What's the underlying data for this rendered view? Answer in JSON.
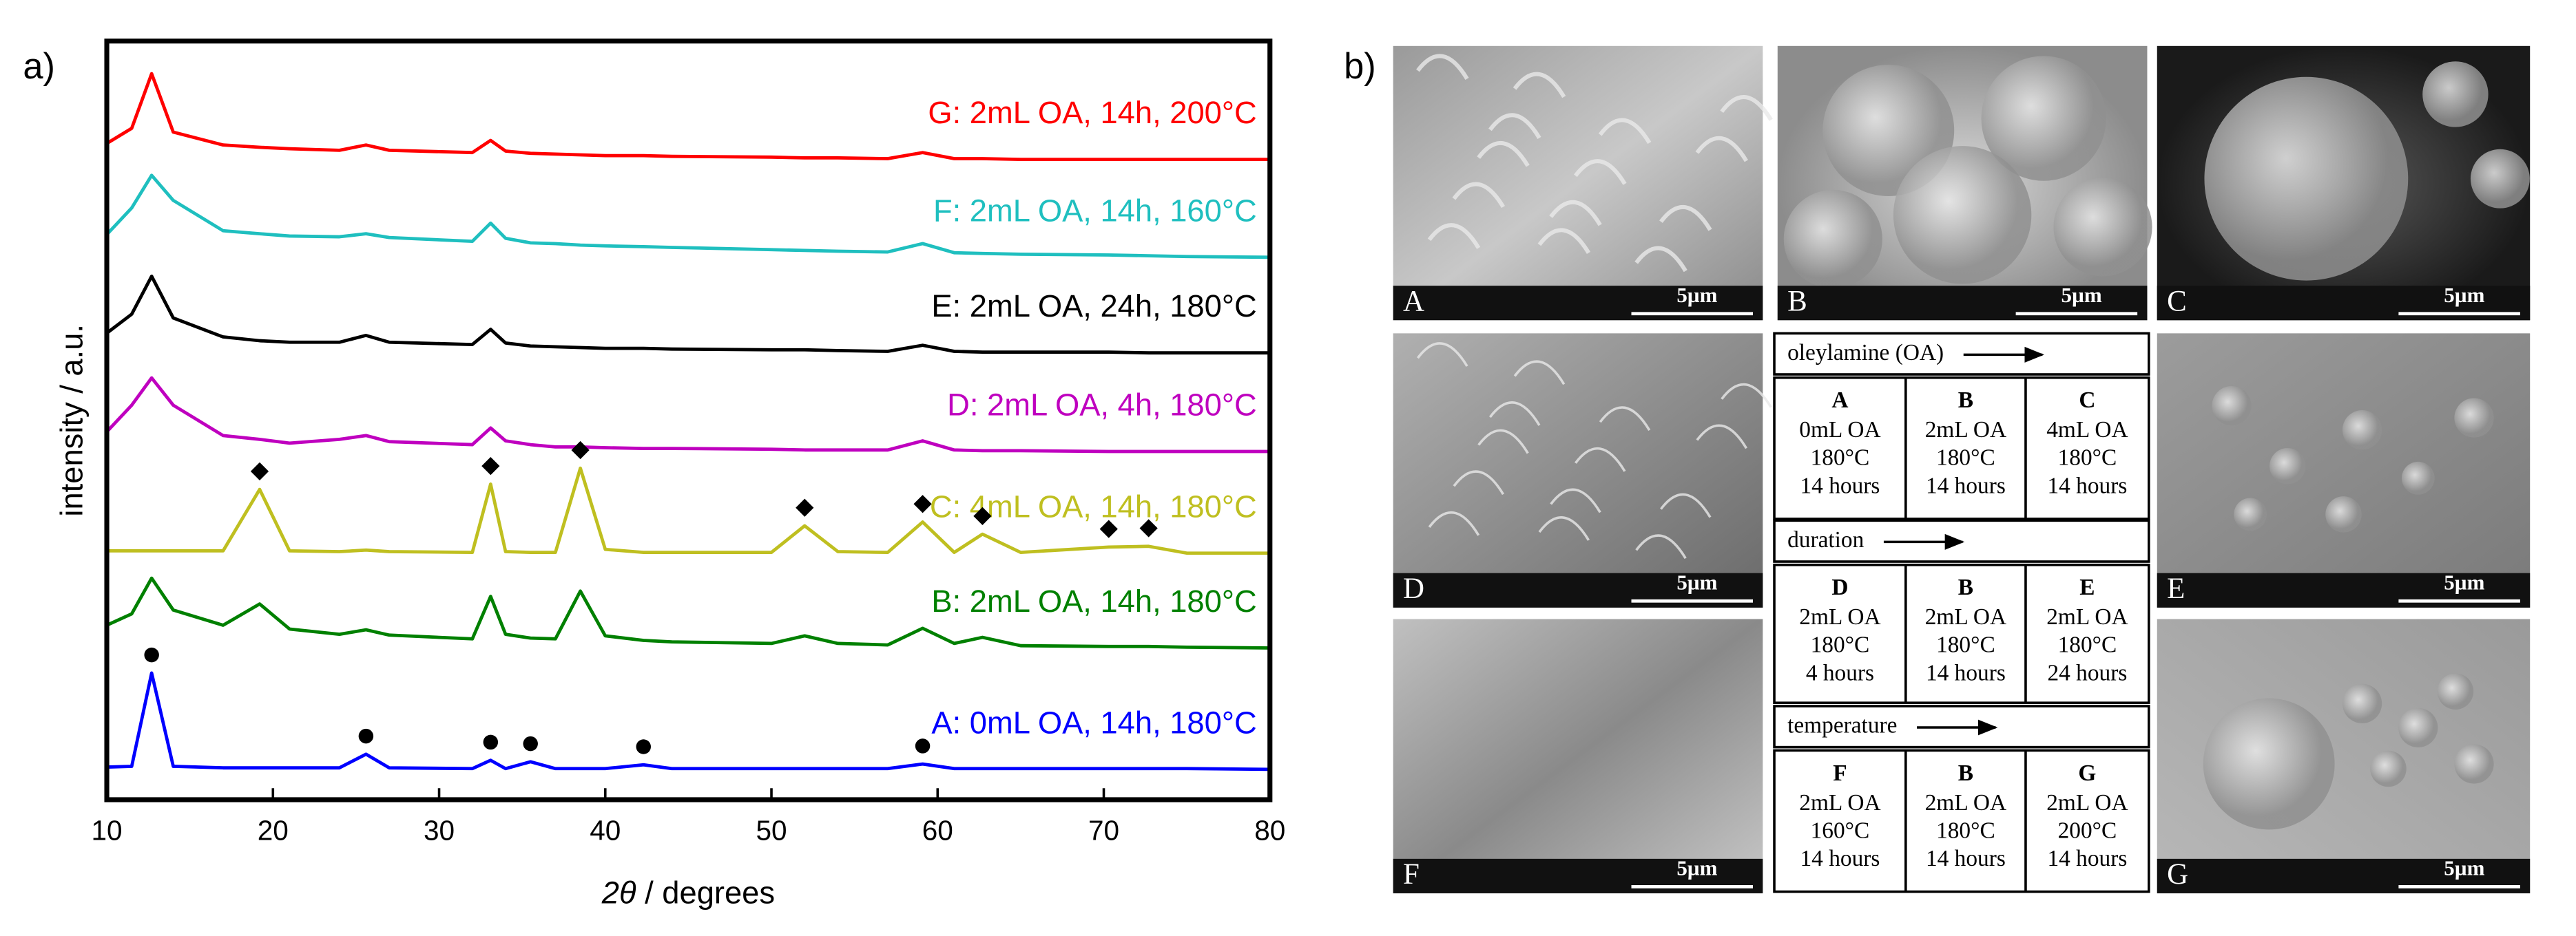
{
  "panel_labels": [
    "a)",
    "b)"
  ],
  "chart_data": {
    "type": "line",
    "ylabel": "intensity / a.u.",
    "xlabel": "2θ / degrees",
    "xlim": [
      10,
      80
    ],
    "xticks": [
      10,
      20,
      30,
      40,
      50,
      60,
      70,
      80
    ],
    "ylim": [
      0,
      100
    ],
    "grid": false,
    "x": [
      10,
      11.5,
      12.7,
      14,
      17,
      19.2,
      21,
      24,
      25.6,
      27,
      32,
      33.1,
      34,
      35.5,
      37,
      38.5,
      40,
      42.3,
      44,
      50,
      52,
      54,
      57,
      59.1,
      61,
      62.7,
      65,
      70.3,
      72.7,
      75,
      80
    ],
    "series": [
      {
        "name": "G: 2mL OA, 14h, 200°C",
        "color": "#ff0000",
        "values": [
          86.5,
          88.5,
          95.7,
          88,
          86.3,
          86,
          85.8,
          85.6,
          86.3,
          85.6,
          85.3,
          86.9,
          85.5,
          85.2,
          85.1,
          85,
          84.9,
          84.9,
          84.8,
          84.7,
          84.6,
          84.6,
          84.5,
          85.3,
          84.5,
          84.5,
          84.4,
          84.4,
          84.4,
          84.4,
          84.4
        ]
      },
      {
        "name": "F: 2mL OA, 14h, 160°C",
        "color": "#1fbfbf",
        "values": [
          74.5,
          78,
          82.3,
          79,
          75,
          74.6,
          74.3,
          74.2,
          74.6,
          74.1,
          73.6,
          76,
          74,
          73.4,
          73.3,
          73.1,
          73,
          72.9,
          72.8,
          72.5,
          72.4,
          72.3,
          72.2,
          73.3,
          72.1,
          72,
          71.9,
          71.8,
          71.7,
          71.6,
          71.5
        ]
      },
      {
        "name": "E: 2mL OA, 24h, 180°C",
        "color": "#000000",
        "values": [
          61.5,
          64,
          69,
          63.5,
          61,
          60.5,
          60.3,
          60.3,
          61.2,
          60.3,
          60,
          62,
          60.2,
          59.8,
          59.7,
          59.6,
          59.5,
          59.5,
          59.4,
          59.3,
          59.3,
          59.2,
          59.1,
          59.9,
          59.1,
          59,
          59,
          59,
          58.9,
          58.9,
          58.9
        ]
      },
      {
        "name": "D: 2mL OA, 4h, 180°C",
        "color": "#bf00bf",
        "values": [
          48.5,
          52,
          55.6,
          52,
          48,
          47.5,
          47,
          47.5,
          48,
          47.2,
          46.8,
          49,
          47.3,
          46.8,
          46.5,
          46.5,
          46.4,
          46.3,
          46.3,
          46.2,
          46.1,
          46.1,
          46.1,
          47.3,
          46.1,
          46,
          46,
          45.9,
          45.9,
          45.9,
          45.9
        ]
      },
      {
        "name": "C: 4mL OA, 14h, 180°C",
        "color": "#bfbf20",
        "values": [
          32.8,
          32.8,
          32.8,
          32.8,
          32.8,
          40.9,
          32.8,
          32.7,
          32.9,
          32.7,
          32.6,
          41.6,
          32.7,
          32.6,
          32.6,
          43.7,
          33,
          32.6,
          32.6,
          32.6,
          36.1,
          32.7,
          32.6,
          36.6,
          32.6,
          35,
          32.6,
          33.3,
          33.4,
          32.5,
          32.5
        ],
        "markers": {
          "shape": "diamond",
          "x": [
            19.2,
            33.1,
            38.5,
            52,
            59.1,
            62.7,
            70.3,
            72.7
          ]
        }
      },
      {
        "name": "B: 2mL OA, 14h, 180°C",
        "color": "#008000",
        "values": [
          23,
          24.5,
          29.2,
          25,
          23,
          25.8,
          22.5,
          21.8,
          22.4,
          21.7,
          21.2,
          26.8,
          21.8,
          21.3,
          21.2,
          27.5,
          21.6,
          21,
          20.8,
          20.6,
          21.6,
          20.6,
          20.4,
          22.6,
          20.6,
          21.4,
          20.3,
          20.2,
          20.2,
          20.1,
          20.0
        ]
      },
      {
        "name": "A: 0mL OA, 14h, 180°C",
        "color": "#0000ff",
        "values": [
          4.3,
          4.4,
          16.7,
          4.4,
          4.2,
          4.2,
          4.2,
          4.2,
          6,
          4.2,
          4.1,
          5.2,
          4.1,
          5,
          4.1,
          4.1,
          4.1,
          4.6,
          4.1,
          4.1,
          4.1,
          4.1,
          4.1,
          4.7,
          4.1,
          4.1,
          4.1,
          4.1,
          4.1,
          4.1,
          4.0
        ],
        "markers": {
          "shape": "circle",
          "x": [
            12.7,
            25.6,
            33.1,
            35.5,
            42.3,
            59.1
          ]
        }
      }
    ]
  },
  "images": [
    {
      "label": "A",
      "scale": "5µm"
    },
    {
      "label": "B",
      "scale": "5µm"
    },
    {
      "label": "C",
      "scale": "5µm"
    },
    {
      "label": "D",
      "scale": "5µm"
    },
    {
      "label": "E",
      "scale": "5µm"
    },
    {
      "label": "F",
      "scale": "5µm"
    },
    {
      "label": "G",
      "scale": "5µm"
    }
  ],
  "table": {
    "sections": [
      {
        "heading": "oleylamine (OA)",
        "cells": [
          {
            "id": "A",
            "lines": [
              "0mL OA",
              "180°C",
              "14 hours"
            ]
          },
          {
            "id": "B",
            "lines": [
              "2mL OA",
              "180°C",
              "14 hours"
            ]
          },
          {
            "id": "C",
            "lines": [
              "4mL OA",
              "180°C",
              "14 hours"
            ]
          }
        ]
      },
      {
        "heading": "duration",
        "cells": [
          {
            "id": "D",
            "lines": [
              "2mL OA",
              "180°C",
              "4 hours"
            ]
          },
          {
            "id": "B",
            "lines": [
              "2mL OA",
              "180°C",
              "14 hours"
            ]
          },
          {
            "id": "E",
            "lines": [
              "2mL OA",
              "180°C",
              "24 hours"
            ]
          }
        ]
      },
      {
        "heading": "temperature",
        "cells": [
          {
            "id": "F",
            "lines": [
              "2mL OA",
              "160°C",
              "14 hours"
            ]
          },
          {
            "id": "B",
            "lines": [
              "2mL OA",
              "180°C",
              "14 hours"
            ]
          },
          {
            "id": "G",
            "lines": [
              "2mL OA",
              "200°C",
              "14 hours"
            ]
          }
        ]
      }
    ]
  }
}
